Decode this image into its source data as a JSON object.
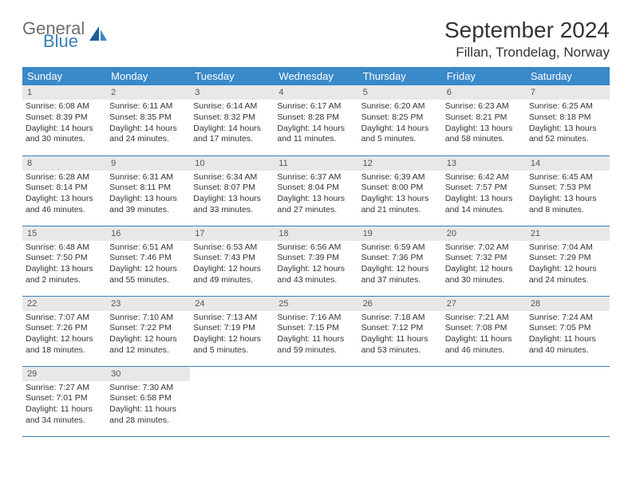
{
  "logo": {
    "general": "General",
    "blue": "Blue"
  },
  "title": "September 2024",
  "location": "Fillan, Trondelag, Norway",
  "colors": {
    "header_bg": "#3a89c9",
    "header_fg": "#ffffff",
    "daynum_bg": "#e8e8e8",
    "border": "#3a7fb5",
    "logo_gray": "#6e6e6e",
    "logo_blue": "#3a7fb5"
  },
  "weekdays": [
    "Sunday",
    "Monday",
    "Tuesday",
    "Wednesday",
    "Thursday",
    "Friday",
    "Saturday"
  ],
  "weeks": [
    [
      {
        "n": "1",
        "sr": "6:08 AM",
        "ss": "8:39 PM",
        "dl": "14 hours and 30 minutes."
      },
      {
        "n": "2",
        "sr": "6:11 AM",
        "ss": "8:35 PM",
        "dl": "14 hours and 24 minutes."
      },
      {
        "n": "3",
        "sr": "6:14 AM",
        "ss": "8:32 PM",
        "dl": "14 hours and 17 minutes."
      },
      {
        "n": "4",
        "sr": "6:17 AM",
        "ss": "8:28 PM",
        "dl": "14 hours and 11 minutes."
      },
      {
        "n": "5",
        "sr": "6:20 AM",
        "ss": "8:25 PM",
        "dl": "14 hours and 5 minutes."
      },
      {
        "n": "6",
        "sr": "6:23 AM",
        "ss": "8:21 PM",
        "dl": "13 hours and 58 minutes."
      },
      {
        "n": "7",
        "sr": "6:25 AM",
        "ss": "8:18 PM",
        "dl": "13 hours and 52 minutes."
      }
    ],
    [
      {
        "n": "8",
        "sr": "6:28 AM",
        "ss": "8:14 PM",
        "dl": "13 hours and 46 minutes."
      },
      {
        "n": "9",
        "sr": "6:31 AM",
        "ss": "8:11 PM",
        "dl": "13 hours and 39 minutes."
      },
      {
        "n": "10",
        "sr": "6:34 AM",
        "ss": "8:07 PM",
        "dl": "13 hours and 33 minutes."
      },
      {
        "n": "11",
        "sr": "6:37 AM",
        "ss": "8:04 PM",
        "dl": "13 hours and 27 minutes."
      },
      {
        "n": "12",
        "sr": "6:39 AM",
        "ss": "8:00 PM",
        "dl": "13 hours and 21 minutes."
      },
      {
        "n": "13",
        "sr": "6:42 AM",
        "ss": "7:57 PM",
        "dl": "13 hours and 14 minutes."
      },
      {
        "n": "14",
        "sr": "6:45 AM",
        "ss": "7:53 PM",
        "dl": "13 hours and 8 minutes."
      }
    ],
    [
      {
        "n": "15",
        "sr": "6:48 AM",
        "ss": "7:50 PM",
        "dl": "13 hours and 2 minutes."
      },
      {
        "n": "16",
        "sr": "6:51 AM",
        "ss": "7:46 PM",
        "dl": "12 hours and 55 minutes."
      },
      {
        "n": "17",
        "sr": "6:53 AM",
        "ss": "7:43 PM",
        "dl": "12 hours and 49 minutes."
      },
      {
        "n": "18",
        "sr": "6:56 AM",
        "ss": "7:39 PM",
        "dl": "12 hours and 43 minutes."
      },
      {
        "n": "19",
        "sr": "6:59 AM",
        "ss": "7:36 PM",
        "dl": "12 hours and 37 minutes."
      },
      {
        "n": "20",
        "sr": "7:02 AM",
        "ss": "7:32 PM",
        "dl": "12 hours and 30 minutes."
      },
      {
        "n": "21",
        "sr": "7:04 AM",
        "ss": "7:29 PM",
        "dl": "12 hours and 24 minutes."
      }
    ],
    [
      {
        "n": "22",
        "sr": "7:07 AM",
        "ss": "7:26 PM",
        "dl": "12 hours and 18 minutes."
      },
      {
        "n": "23",
        "sr": "7:10 AM",
        "ss": "7:22 PM",
        "dl": "12 hours and 12 minutes."
      },
      {
        "n": "24",
        "sr": "7:13 AM",
        "ss": "7:19 PM",
        "dl": "12 hours and 5 minutes."
      },
      {
        "n": "25",
        "sr": "7:16 AM",
        "ss": "7:15 PM",
        "dl": "11 hours and 59 minutes."
      },
      {
        "n": "26",
        "sr": "7:18 AM",
        "ss": "7:12 PM",
        "dl": "11 hours and 53 minutes."
      },
      {
        "n": "27",
        "sr": "7:21 AM",
        "ss": "7:08 PM",
        "dl": "11 hours and 46 minutes."
      },
      {
        "n": "28",
        "sr": "7:24 AM",
        "ss": "7:05 PM",
        "dl": "11 hours and 40 minutes."
      }
    ],
    [
      {
        "n": "29",
        "sr": "7:27 AM",
        "ss": "7:01 PM",
        "dl": "11 hours and 34 minutes."
      },
      {
        "n": "30",
        "sr": "7:30 AM",
        "ss": "6:58 PM",
        "dl": "11 hours and 28 minutes."
      },
      null,
      null,
      null,
      null,
      null
    ]
  ],
  "labels": {
    "sunrise": "Sunrise:",
    "sunset": "Sunset:",
    "daylight": "Daylight:"
  }
}
